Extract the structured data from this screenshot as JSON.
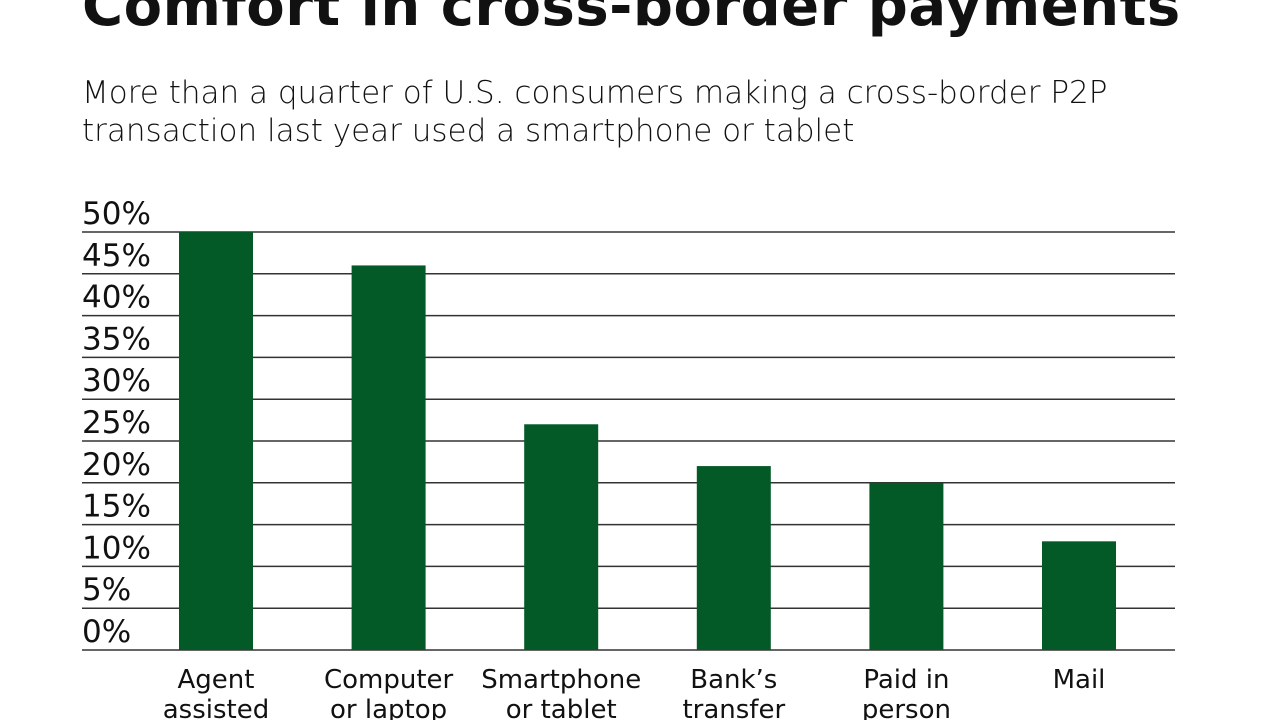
{
  "chart_data": {
    "type": "bar",
    "title": "Comfort in cross-border payments",
    "subtitle": "More than a quarter of U.S. consumers making a cross-border P2P transaction last year used a smartphone or tablet",
    "categories": [
      [
        "Agent",
        "assisted"
      ],
      [
        "Computer",
        "or laptop"
      ],
      [
        "Smartphone",
        "or tablet"
      ],
      [
        "Bank’s",
        "transfer"
      ],
      [
        "Paid in",
        "person"
      ],
      [
        "Mail"
      ]
    ],
    "values": [
      50,
      46,
      27,
      22,
      20,
      13
    ],
    "yticks": [
      "0%",
      "5%",
      "10%",
      "15%",
      "20%",
      "25%",
      "30%",
      "35%",
      "40%",
      "45%",
      "50%"
    ],
    "ylim": [
      0,
      50
    ],
    "grid": true,
    "bar_color": "#045a27"
  }
}
